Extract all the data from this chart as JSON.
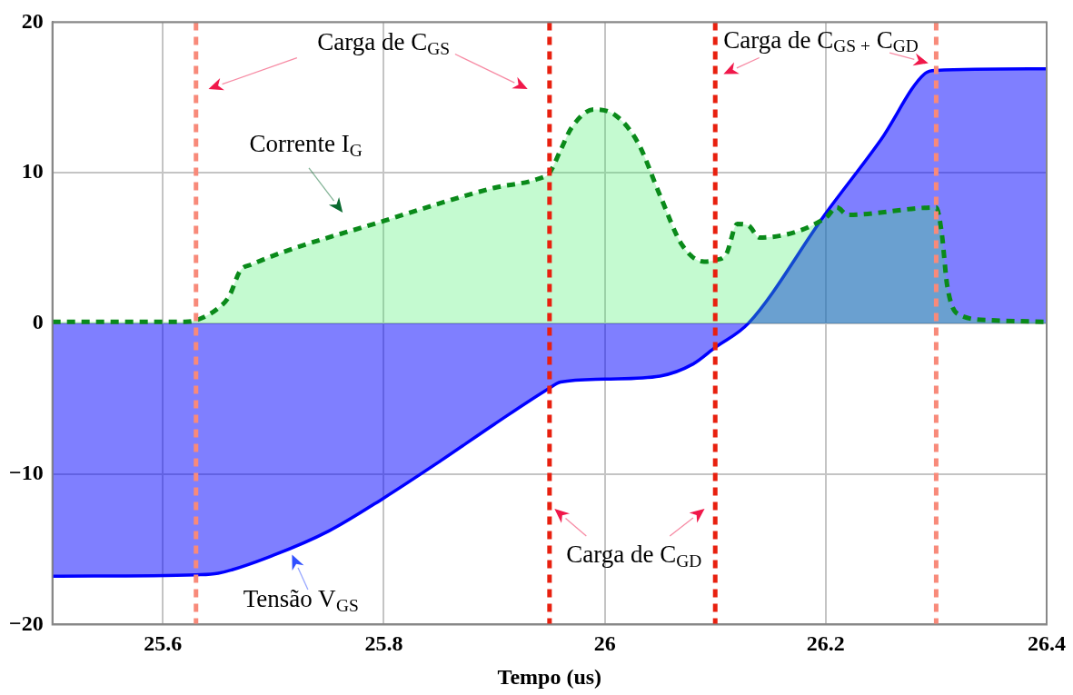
{
  "chart_data": {
    "type": "area",
    "xlabel": "Tempo (us)",
    "xlim": [
      25.5,
      26.4
    ],
    "xticks": [
      {
        "value": 25.5,
        "label": null
      },
      25.6,
      25.8,
      26,
      26.2,
      26.4
    ],
    "ylim": [
      -20,
      20
    ],
    "yticks": [
      -20,
      -10,
      0,
      10,
      20
    ],
    "grid": true,
    "legend": false,
    "marker": "none",
    "series": [
      {
        "color": "#0a8a1a",
        "line_style": "dashed",
        "x": [
          25.5,
          25.62,
          25.63,
          25.65,
          25.66,
          25.67,
          25.68,
          25.8,
          25.9,
          25.94,
          25.95,
          25.96,
          25.97,
          25.99,
          26.01,
          26.03,
          26.05,
          26.07,
          26.09,
          26.1,
          26.11,
          26.12,
          26.13,
          26.14,
          26.2,
          26.21,
          26.22,
          26.3,
          26.305,
          26.31,
          26.32,
          26.35,
          26.4
        ],
        "values": [
          0.1,
          0.1,
          0.2,
          1.0,
          1.8,
          3.5,
          3.9,
          6.8,
          9.0,
          9.6,
          10.0,
          11.5,
          13.0,
          14.2,
          13.8,
          12.0,
          8.5,
          5.2,
          4.1,
          4.2,
          4.6,
          6.6,
          6.5,
          5.7,
          7.0,
          7.7,
          7.2,
          7.7,
          6.0,
          2.5,
          0.6,
          0.2,
          0.1
        ]
      },
      {
        "color": "#0000ff",
        "line_style": "solid",
        "x": [
          25.5,
          25.63,
          25.65,
          25.7,
          25.75,
          25.8,
          25.85,
          25.9,
          25.95,
          25.96,
          26.0,
          26.05,
          26.08,
          26.1,
          26.13,
          26.2,
          26.25,
          26.29,
          26.3,
          26.4
        ],
        "values": [
          -16.8,
          -16.7,
          -16.6,
          -15.4,
          -13.8,
          -11.6,
          -9.2,
          -6.7,
          -4.3,
          -3.9,
          -3.7,
          -3.5,
          -2.7,
          -1.6,
          0,
          7.3,
          12.2,
          16.6,
          16.8,
          16.9
        ]
      }
    ],
    "ref_lines": [
      {
        "axis": "x",
        "value": 25.63,
        "color": "#f88a7a",
        "line_style": "dashed"
      },
      {
        "axis": "x",
        "value": 25.95,
        "color": "#e8200f",
        "line_style": "dashed"
      },
      {
        "axis": "x",
        "value": 26.1,
        "color": "#e8200f",
        "line_style": "dashed"
      },
      {
        "axis": "x",
        "value": 26.3,
        "color": "#f88a7a",
        "line_style": "dashed"
      }
    ],
    "annotations": [
      "Carga de C$_{GS}$",
      "Corrente I$_{G}$",
      "Carga de C$_{GS +}$ C$_{GD}$",
      "Carga de C$_{GD}$",
      "Tensão V$_{GS}$"
    ]
  }
}
